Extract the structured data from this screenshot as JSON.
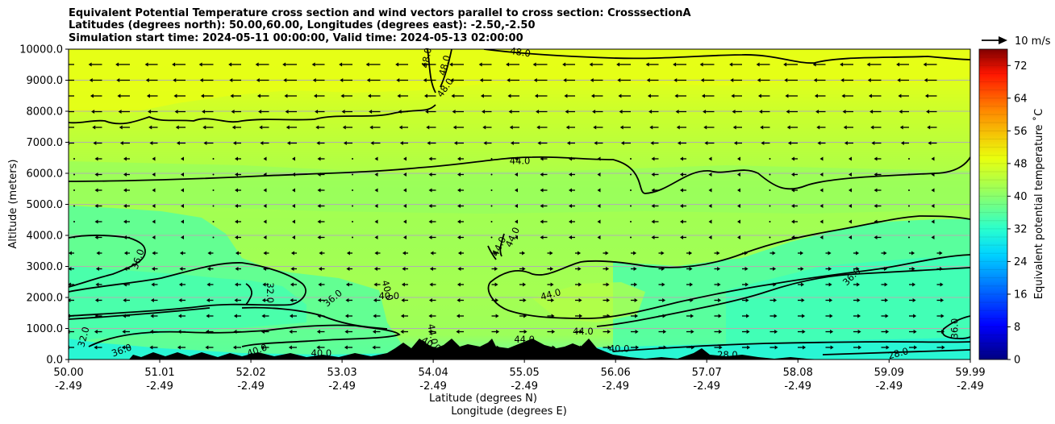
{
  "chart_data": {
    "type": "heatmap",
    "title_lines": [
      "Equivalent Potential Temperature cross section and wind vectors parallel to cross section: CrosssectionA",
      "Latitudes (degrees north): 50.00,60.00, Longitudes (degrees east): -2.50,-2.50",
      "Simulation start time: 2024-05-11 00:00:00, Valid time: 2024-05-13 02:00:00"
    ],
    "ylabel": "Altitude (meters)",
    "xlabel_lat": "Latitude (degrees N)",
    "xlabel_lon": "Longitude (degrees E)",
    "ylim": [
      0,
      10000
    ],
    "y_ticks": [
      {
        "value": 0,
        "label": "0.0"
      },
      {
        "value": 1000,
        "label": "1000.0"
      },
      {
        "value": 2000,
        "label": "2000.0"
      },
      {
        "value": 3000,
        "label": "3000.0"
      },
      {
        "value": 4000,
        "label": "4000.0"
      },
      {
        "value": 5000,
        "label": "5000.0"
      },
      {
        "value": 6000,
        "label": "6000.0"
      },
      {
        "value": 7000,
        "label": "7000.0"
      },
      {
        "value": 8000,
        "label": "8000.0"
      },
      {
        "value": 9000,
        "label": "9000.0"
      },
      {
        "value": 10000,
        "label": "10000.0"
      }
    ],
    "xlim": [
      50.0,
      59.99
    ],
    "x_ticks": [
      {
        "value": 50.0,
        "lat": "50.00",
        "lon": "-2.49"
      },
      {
        "value": 51.01,
        "lat": "51.01",
        "lon": "-2.49"
      },
      {
        "value": 52.02,
        "lat": "52.02",
        "lon": "-2.49"
      },
      {
        "value": 53.03,
        "lat": "53.03",
        "lon": "-2.49"
      },
      {
        "value": 54.04,
        "lat": "54.04",
        "lon": "-2.49"
      },
      {
        "value": 55.05,
        "lat": "55.05",
        "lon": "-2.49"
      },
      {
        "value": 56.06,
        "lat": "56.06",
        "lon": "-2.49"
      },
      {
        "value": 57.07,
        "lat": "57.07",
        "lon": "-2.49"
      },
      {
        "value": 58.08,
        "lat": "58.08",
        "lon": "-2.49"
      },
      {
        "value": 59.09,
        "lat": "59.09",
        "lon": "-2.49"
      },
      {
        "value": 59.99,
        "lat": "59.99",
        "lon": "-2.49"
      }
    ],
    "grid": "horizontal",
    "colorbar": {
      "label": "Equivalent potential temperature ˚C",
      "range": [
        0,
        76
      ],
      "ticks": [
        0,
        8,
        16,
        24,
        32,
        40,
        48,
        56,
        64,
        72
      ],
      "colormap": "jet"
    },
    "quiver_key": "10 m/s",
    "contour_labels": [
      {
        "x": 54.0,
        "y": 9700,
        "text": "48.0",
        "angle": -80
      },
      {
        "x": 54.2,
        "y": 9450,
        "text": "48.0",
        "angle": -75
      },
      {
        "x": 54.2,
        "y": 8700,
        "text": "48.0",
        "angle": -55
      },
      {
        "x": 55.0,
        "y": 9800,
        "text": "48.0",
        "angle": 8
      },
      {
        "x": 55.0,
        "y": 6300,
        "text": "44.0",
        "angle": 0
      },
      {
        "x": 54.8,
        "y": 3600,
        "text": "44.0",
        "angle": -65
      },
      {
        "x": 54.95,
        "y": 3900,
        "text": "44.0",
        "angle": -65
      },
      {
        "x": 50.8,
        "y": 3200,
        "text": "36.0",
        "angle": -70
      },
      {
        "x": 52.2,
        "y": 2150,
        "text": "32.0",
        "angle": 90
      },
      {
        "x": 52.95,
        "y": 1900,
        "text": "36.0",
        "angle": -40
      },
      {
        "x": 53.5,
        "y": 2200,
        "text": "40.0",
        "angle": 75
      },
      {
        "x": 53.55,
        "y": 1950,
        "text": "40.0",
        "angle": 0
      },
      {
        "x": 55.35,
        "y": 2000,
        "text": "44.0",
        "angle": -15
      },
      {
        "x": 55.7,
        "y": 800,
        "text": "44.0",
        "angle": 0
      },
      {
        "x": 54.0,
        "y": 800,
        "text": "44.0",
        "angle": 80
      },
      {
        "x": 54.0,
        "y": 400,
        "text": "40.0",
        "angle": 30
      },
      {
        "x": 55.05,
        "y": 550,
        "text": "44.0",
        "angle": 0
      },
      {
        "x": 56.1,
        "y": 250,
        "text": "40.0",
        "angle": 0
      },
      {
        "x": 57.3,
        "y": 50,
        "text": "28.0",
        "angle": 0
      },
      {
        "x": 59.2,
        "y": 100,
        "text": "28.0",
        "angle": -15
      },
      {
        "x": 58.7,
        "y": 2600,
        "text": "36.0",
        "angle": -45
      },
      {
        "x": 59.85,
        "y": 1000,
        "text": "36.0",
        "angle": -90
      },
      {
        "x": 52.1,
        "y": 200,
        "text": "40.0",
        "angle": -20
      },
      {
        "x": 52.8,
        "y": 100,
        "text": "40.0",
        "angle": 0
      },
      {
        "x": 50.2,
        "y": 700,
        "text": "32.0",
        "angle": -75
      },
      {
        "x": 50.6,
        "y": 200,
        "text": "36.0",
        "angle": -20
      }
    ]
  },
  "colors": {
    "cold_surface": "#27f5d6",
    "low_mid": "#55ff9c",
    "mid": "#9cff55",
    "upper": "#cbff29",
    "top": "#e5ff18",
    "terrain": "#000000"
  }
}
